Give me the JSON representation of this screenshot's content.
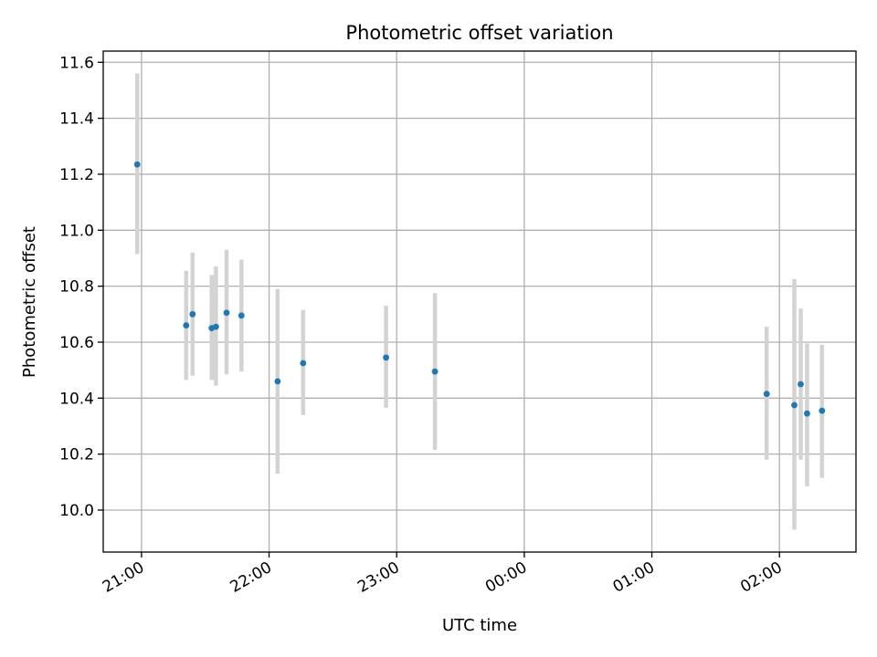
{
  "chart_data": {
    "type": "scatter",
    "title": "Photometric offset variation",
    "xlabel": "UTC time",
    "ylabel": "Photometric offset",
    "x_axis_type": "time",
    "xlim": [
      "20:42",
      "02:36"
    ],
    "ylim": [
      9.85,
      11.64
    ],
    "grid": true,
    "x_ticks": [
      "21:00",
      "22:00",
      "23:00",
      "00:00",
      "01:00",
      "02:00"
    ],
    "y_ticks": [
      10.0,
      10.2,
      10.4,
      10.6,
      10.8,
      11.0,
      11.2,
      11.4,
      11.6
    ],
    "y_tick_labels": [
      "10.0",
      "10.2",
      "10.4",
      "10.6",
      "10.8",
      "11.0",
      "11.2",
      "11.4",
      "11.6"
    ],
    "colors": {
      "point": "#1f77b4",
      "error_bar": "#d3d3d3",
      "grid": "#b0b0b0"
    },
    "points": [
      {
        "x": "20:58",
        "y": 11.235,
        "yerr_low": 10.915,
        "yerr_high": 11.56
      },
      {
        "x": "21:21",
        "y": 10.66,
        "yerr_low": 10.465,
        "yerr_high": 10.855
      },
      {
        "x": "21:24",
        "y": 10.7,
        "yerr_low": 10.48,
        "yerr_high": 10.92
      },
      {
        "x": "21:33",
        "y": 10.65,
        "yerr_low": 10.465,
        "yerr_high": 10.84
      },
      {
        "x": "21:35",
        "y": 10.655,
        "yerr_low": 10.445,
        "yerr_high": 10.87
      },
      {
        "x": "21:40",
        "y": 10.705,
        "yerr_low": 10.485,
        "yerr_high": 10.93
      },
      {
        "x": "21:47",
        "y": 10.695,
        "yerr_low": 10.495,
        "yerr_high": 10.895
      },
      {
        "x": "22:04",
        "y": 10.46,
        "yerr_low": 10.13,
        "yerr_high": 10.79
      },
      {
        "x": "22:16",
        "y": 10.525,
        "yerr_low": 10.34,
        "yerr_high": 10.715
      },
      {
        "x": "22:55",
        "y": 10.545,
        "yerr_low": 10.365,
        "yerr_high": 10.73
      },
      {
        "x": "23:18",
        "y": 10.495,
        "yerr_low": 10.215,
        "yerr_high": 10.775
      },
      {
        "x": "01:54",
        "y": 10.415,
        "yerr_low": 10.18,
        "yerr_high": 10.655
      },
      {
        "x": "02:07",
        "y": 10.375,
        "yerr_low": 9.93,
        "yerr_high": 10.825
      },
      {
        "x": "02:10",
        "y": 10.45,
        "yerr_low": 10.18,
        "yerr_high": 10.72
      },
      {
        "x": "02:13",
        "y": 10.345,
        "yerr_low": 10.085,
        "yerr_high": 10.595
      },
      {
        "x": "02:20",
        "y": 10.355,
        "yerr_low": 10.115,
        "yerr_high": 10.59
      }
    ]
  }
}
